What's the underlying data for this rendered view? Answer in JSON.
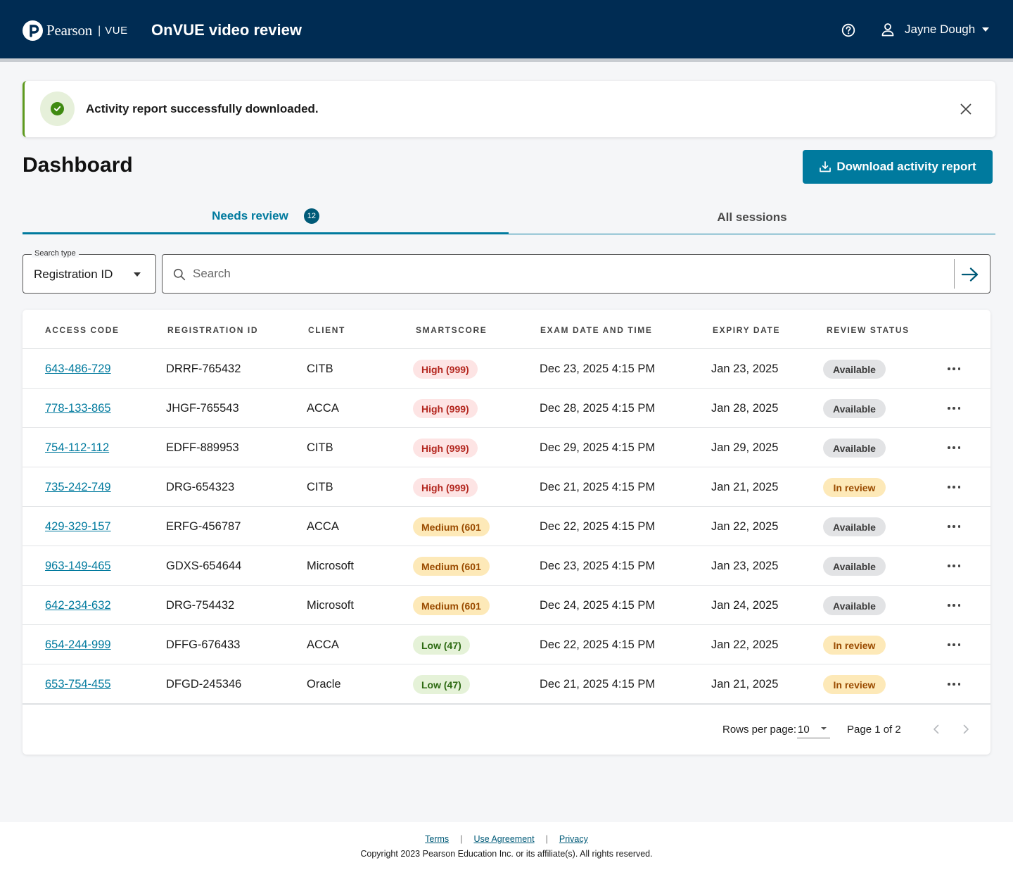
{
  "header": {
    "brand_name": "Pearson",
    "brand_separator": "|",
    "brand_product": "VUE",
    "app_title": "OnVUE video review",
    "user_name": "Jayne Dough"
  },
  "alert": {
    "message": "Activity report successfully downloaded."
  },
  "page": {
    "title": "Dashboard",
    "download_button": "Download activity report"
  },
  "tabs": [
    {
      "label": "Needs review",
      "badge": "12",
      "active": true
    },
    {
      "label": "All sessions",
      "active": false
    }
  ],
  "search": {
    "type_label": "Search type",
    "type_value": "Registration ID",
    "placeholder": "Search"
  },
  "table": {
    "columns": [
      "ACCESS CODE",
      "REGISTRATION ID",
      "CLIENT",
      "SMARTSCORE",
      "EXAM DATE AND TIME",
      "EXPIRY DATE",
      "REVIEW STATUS"
    ],
    "rows": [
      {
        "access_code": "643-486-729",
        "registration_id": "DRRF-765432",
        "client": "CITB",
        "smartscore": "High (999)",
        "score_level": "high",
        "exam_date": "Dec 23, 2025 4:15 PM",
        "expiry_date": "Jan 23, 2025",
        "status": "Available",
        "status_type": "available"
      },
      {
        "access_code": "778-133-865",
        "registration_id": "JHGF-765543",
        "client": "ACCA",
        "smartscore": "High (999)",
        "score_level": "high",
        "exam_date": "Dec 28, 2025 4:15 PM",
        "expiry_date": "Jan 28, 2025",
        "status": "Available",
        "status_type": "available"
      },
      {
        "access_code": "754-112-112",
        "registration_id": "EDFF-889953",
        "client": "CITB",
        "smartscore": "High (999)",
        "score_level": "high",
        "exam_date": "Dec 29, 2025 4:15 PM",
        "expiry_date": "Jan 29, 2025",
        "status": "Available",
        "status_type": "available"
      },
      {
        "access_code": "735-242-749",
        "registration_id": "DRG-654323",
        "client": "CITB",
        "smartscore": "High (999)",
        "score_level": "high",
        "exam_date": "Dec 21, 2025 4:15 PM",
        "expiry_date": "Jan 21, 2025",
        "status": "In review",
        "status_type": "inreview"
      },
      {
        "access_code": "429-329-157",
        "registration_id": "ERFG-456787",
        "client": "ACCA",
        "smartscore": "Medium (601",
        "score_level": "medium",
        "exam_date": "Dec 22, 2025 4:15 PM",
        "expiry_date": "Jan 22, 2025",
        "status": "Available",
        "status_type": "available"
      },
      {
        "access_code": "963-149-465",
        "registration_id": "GDXS-654644",
        "client": "Microsoft",
        "smartscore": "Medium (601",
        "score_level": "medium",
        "exam_date": "Dec 23, 2025 4:15 PM",
        "expiry_date": "Jan 23, 2025",
        "status": "Available",
        "status_type": "available"
      },
      {
        "access_code": "642-234-632",
        "registration_id": "DRG-754432",
        "client": "Microsoft",
        "smartscore": "Medium (601",
        "score_level": "medium",
        "exam_date": "Dec 24, 2025 4:15 PM",
        "expiry_date": "Jan 24, 2025",
        "status": "Available",
        "status_type": "available"
      },
      {
        "access_code": "654-244-999",
        "registration_id": "DFFG-676433",
        "client": "ACCA",
        "smartscore": "Low (47)",
        "score_level": "low",
        "exam_date": "Dec 22, 2025 4:15 PM",
        "expiry_date": "Jan 22, 2025",
        "status": "In review",
        "status_type": "inreview"
      },
      {
        "access_code": "653-754-455",
        "registration_id": "DFGD-245346",
        "client": "Oracle",
        "smartscore": "Low (47)",
        "score_level": "low",
        "exam_date": "Dec 21, 2025 4:15 PM",
        "expiry_date": "Jan 21, 2025",
        "status": "In review",
        "status_type": "inreview"
      }
    ]
  },
  "pagination": {
    "rows_per_page_label": "Rows per page:",
    "rows_per_page_value": "10",
    "page_info": "Page 1 of 2"
  },
  "footer": {
    "links": [
      "Terms",
      "Use Agreement",
      "Privacy"
    ],
    "separator": "|",
    "copyright": "Copyright 2023 Pearson Education Inc. or its affiliate(s). All rights reserved."
  },
  "colors": {
    "header_bg": "#002c53",
    "accent": "#007a9e",
    "success": "#3f8a11",
    "high": "#b3261e",
    "medium": "#9a4b00",
    "low": "#2d6a12"
  }
}
